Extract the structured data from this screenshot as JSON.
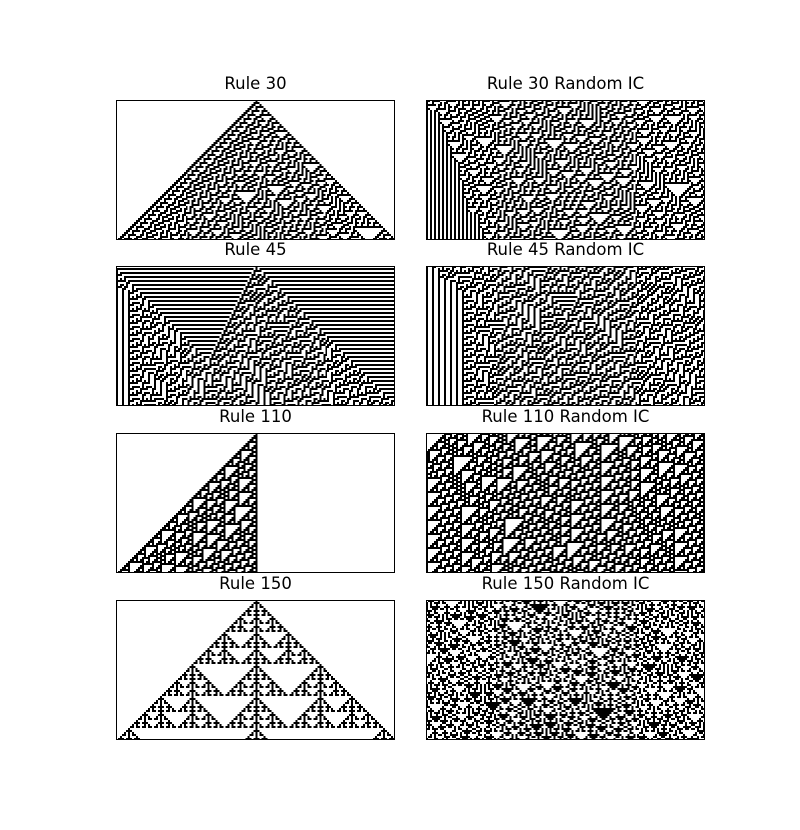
{
  "colors": {
    "live_cell": "#000000",
    "dead_cell": "#ffffff",
    "frame": "#000000"
  },
  "chart_data": [
    {
      "type": "heatmap",
      "title": "Rule 30",
      "rule": 30,
      "initial_condition": "single",
      "width": 140,
      "steps": 70,
      "grid": false
    },
    {
      "type": "heatmap",
      "title": "Rule 30 Random IC",
      "rule": 30,
      "initial_condition": "random",
      "width": 140,
      "steps": 70,
      "grid": false
    },
    {
      "type": "heatmap",
      "title": "Rule 45",
      "rule": 45,
      "initial_condition": "single",
      "width": 140,
      "steps": 70,
      "grid": false
    },
    {
      "type": "heatmap",
      "title": "Rule 45 Random IC",
      "rule": 45,
      "initial_condition": "random",
      "width": 140,
      "steps": 70,
      "grid": false
    },
    {
      "type": "heatmap",
      "title": "Rule 110",
      "rule": 110,
      "initial_condition": "single",
      "width": 140,
      "steps": 70,
      "grid": false
    },
    {
      "type": "heatmap",
      "title": "Rule 110 Random IC",
      "rule": 110,
      "initial_condition": "random",
      "width": 140,
      "steps": 70,
      "grid": false
    },
    {
      "type": "heatmap",
      "title": "Rule 150",
      "rule": 150,
      "initial_condition": "single",
      "width": 140,
      "steps": 70,
      "grid": false
    },
    {
      "type": "heatmap",
      "title": "Rule 150 Random IC",
      "rule": 150,
      "initial_condition": "random",
      "width": 140,
      "steps": 70,
      "grid": false
    }
  ]
}
